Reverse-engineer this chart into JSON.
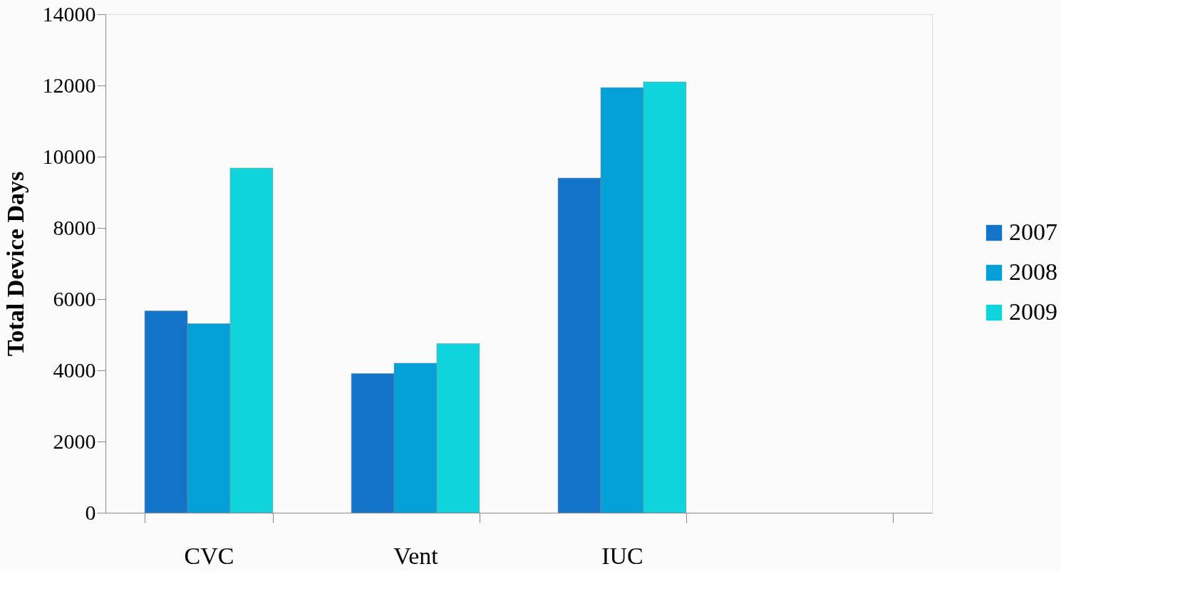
{
  "chart_data": {
    "type": "bar",
    "ylabel": "Total Device Days",
    "categories": [
      "CVC",
      "Vent",
      "IUC",
      null
    ],
    "series": [
      {
        "name": "2007",
        "color": "#1474c8",
        "values": [
          5670,
          3910,
          9400,
          null
        ]
      },
      {
        "name": "2008",
        "color": "#04a0d8",
        "values": [
          5310,
          4200,
          11940,
          null
        ]
      },
      {
        "name": "2009",
        "color": "#10d4dc",
        "values": [
          9680,
          4750,
          12100,
          null
        ]
      }
    ],
    "ylim": [
      0,
      14000
    ],
    "yticks": [
      0,
      2000,
      4000,
      6000,
      8000,
      10000,
      12000,
      14000
    ],
    "grid": false,
    "legend": "right"
  }
}
